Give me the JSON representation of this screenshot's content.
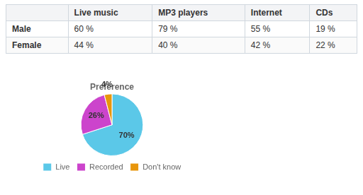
{
  "chart_data": [
    {
      "type": "table",
      "categories": [
        "Live music",
        "MP3 players",
        "Internet",
        "CDs"
      ],
      "series": [
        {
          "name": "Male",
          "values": [
            60,
            79,
            55,
            19
          ],
          "value_labels": [
            "60 %",
            "79 %",
            "55 %",
            "19 %"
          ]
        },
        {
          "name": "Female",
          "values": [
            44,
            40,
            42,
            22
          ],
          "value_labels": [
            "44 %",
            "40 %",
            "42 %",
            "22 %"
          ]
        }
      ]
    },
    {
      "type": "pie",
      "title": "Preference",
      "categories": [
        "Live",
        "Recorded",
        "Don't know"
      ],
      "values": [
        70,
        26,
        4
      ],
      "value_labels": [
        "70%",
        "26%",
        "4%"
      ],
      "colors": [
        "#5bc8e8",
        "#cc44cc",
        "#e8960c"
      ],
      "legend": "bottom",
      "data_labels": true
    }
  ]
}
